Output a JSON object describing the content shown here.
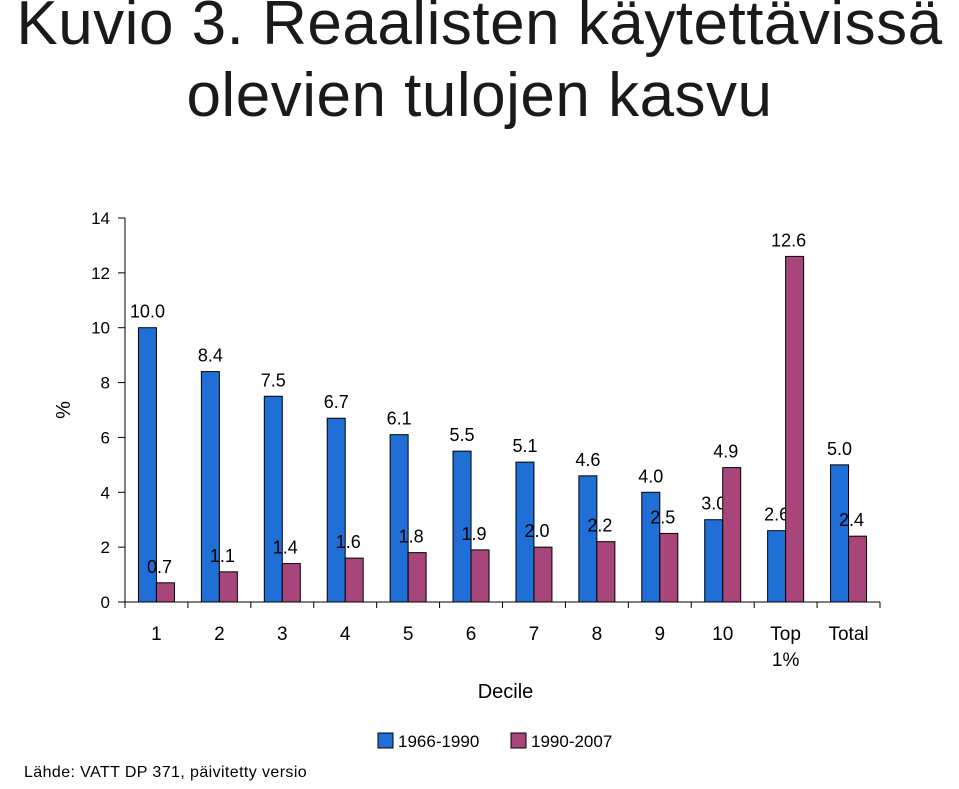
{
  "title_lines": [
    "Kuvio 3. Reaalisten käytettävissä",
    "olevien tulojen kasvu"
  ],
  "source": "Lähde: VATT DP 371, päivitetty versio",
  "chart_data": {
    "type": "bar",
    "categories": [
      [
        "1"
      ],
      [
        "2"
      ],
      [
        "3"
      ],
      [
        "4"
      ],
      [
        "5"
      ],
      [
        "6"
      ],
      [
        "7"
      ],
      [
        "8"
      ],
      [
        "9"
      ],
      [
        "10"
      ],
      [
        "Top",
        "1%"
      ],
      [
        "Total"
      ]
    ],
    "series": [
      {
        "name": "1966-1990",
        "color": "#1f6fd6",
        "values": [
          10.0,
          8.4,
          7.5,
          6.7,
          6.1,
          5.5,
          5.1,
          4.6,
          4.0,
          3.0,
          2.6,
          5.0
        ]
      },
      {
        "name": "1990-2007",
        "color": "#a8457a",
        "values": [
          0.7,
          1.1,
          1.4,
          1.6,
          1.8,
          1.9,
          2.0,
          2.2,
          2.5,
          4.9,
          12.6,
          2.4
        ]
      }
    ],
    "xlabel": "Decile",
    "ylabel": "%",
    "ylim": [
      0,
      14
    ],
    "yticks": [
      0,
      2,
      4,
      6,
      8,
      10,
      12,
      14
    ],
    "legend_position": "bottom",
    "grid": false
  }
}
